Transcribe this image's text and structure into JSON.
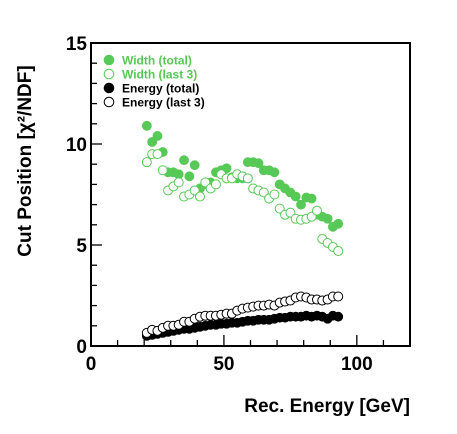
{
  "chart_data": {
    "type": "scatter",
    "xlabel": "Rec. Energy [GeV]",
    "ylabel": "Cut Position [χ²/NDF]",
    "xlim": [
      0,
      120
    ],
    "ylim": [
      0,
      15
    ],
    "xticks": [
      0,
      50,
      100
    ],
    "yticks": [
      0,
      5,
      10,
      15
    ],
    "grid": false,
    "legend_position": "top-left",
    "series": [
      {
        "name": "Width (total)",
        "color": "#57c957",
        "marker": "filled-circle",
        "points": [
          [
            21,
            10.9
          ],
          [
            23,
            10.1
          ],
          [
            25,
            10.4
          ],
          [
            27,
            9.6
          ],
          [
            29,
            8.6
          ],
          [
            31,
            8.6
          ],
          [
            33,
            8.5
          ],
          [
            35,
            9.2
          ],
          [
            37,
            8.4
          ],
          [
            39,
            8.95
          ],
          [
            41,
            7.8
          ],
          [
            43,
            8.0
          ],
          [
            45,
            8.1
          ],
          [
            47,
            8.6
          ],
          [
            49,
            8.7
          ],
          [
            51,
            8.8
          ],
          [
            53,
            8.35
          ],
          [
            55,
            8.3
          ],
          [
            57,
            8.3
          ],
          [
            59,
            9.1
          ],
          [
            61,
            9.1
          ],
          [
            63,
            9.05
          ],
          [
            65,
            8.7
          ],
          [
            67,
            8.7
          ],
          [
            69,
            8.6
          ],
          [
            71,
            8.0
          ],
          [
            73,
            7.8
          ],
          [
            75,
            7.6
          ],
          [
            77,
            7.4
          ],
          [
            79,
            7.0
          ],
          [
            81,
            7.35
          ],
          [
            83,
            7.3
          ],
          [
            85,
            6.5
          ],
          [
            87,
            6.4
          ],
          [
            89,
            6.3
          ],
          [
            91,
            5.9
          ],
          [
            93,
            6.05
          ]
        ]
      },
      {
        "name": "Width (last 3)",
        "color": "#57c957",
        "marker": "open-circle",
        "points": [
          [
            21,
            9.1
          ],
          [
            23,
            9.5
          ],
          [
            25,
            9.5
          ],
          [
            27,
            8.7
          ],
          [
            29,
            7.7
          ],
          [
            31,
            7.9
          ],
          [
            33,
            8.1
          ],
          [
            35,
            7.4
          ],
          [
            37,
            7.5
          ],
          [
            39,
            7.7
          ],
          [
            41,
            7.4
          ],
          [
            43,
            8.1
          ],
          [
            45,
            7.8
          ],
          [
            47,
            8.0
          ],
          [
            49,
            8.5
          ],
          [
            51,
            8.3
          ],
          [
            53,
            8.3
          ],
          [
            55,
            8.5
          ],
          [
            57,
            8.4
          ],
          [
            59,
            8.3
          ],
          [
            61,
            7.8
          ],
          [
            63,
            7.7
          ],
          [
            65,
            7.6
          ],
          [
            67,
            7.3
          ],
          [
            69,
            7.5
          ],
          [
            71,
            6.8
          ],
          [
            73,
            6.5
          ],
          [
            75,
            6.6
          ],
          [
            77,
            6.3
          ],
          [
            79,
            6.25
          ],
          [
            81,
            6.3
          ],
          [
            83,
            6.4
          ],
          [
            85,
            6.7
          ],
          [
            87,
            5.3
          ],
          [
            89,
            5.1
          ],
          [
            91,
            4.9
          ],
          [
            93,
            4.7
          ]
        ]
      },
      {
        "name": "Energy (total)",
        "color": "#000000",
        "marker": "filled-circle",
        "points": [
          [
            21,
            0.5
          ],
          [
            23,
            0.55
          ],
          [
            25,
            0.6
          ],
          [
            27,
            0.65
          ],
          [
            29,
            0.7
          ],
          [
            31,
            0.75
          ],
          [
            33,
            0.8
          ],
          [
            35,
            0.85
          ],
          [
            37,
            0.85
          ],
          [
            39,
            0.9
          ],
          [
            41,
            0.95
          ],
          [
            43,
            1.0
          ],
          [
            45,
            1.05
          ],
          [
            47,
            1.05
          ],
          [
            49,
            1.1
          ],
          [
            51,
            1.1
          ],
          [
            53,
            1.15
          ],
          [
            55,
            1.15
          ],
          [
            57,
            1.2
          ],
          [
            59,
            1.25
          ],
          [
            61,
            1.25
          ],
          [
            63,
            1.3
          ],
          [
            65,
            1.3
          ],
          [
            67,
            1.3
          ],
          [
            69,
            1.35
          ],
          [
            71,
            1.4
          ],
          [
            73,
            1.4
          ],
          [
            75,
            1.45
          ],
          [
            77,
            1.45
          ],
          [
            79,
            1.45
          ],
          [
            81,
            1.5
          ],
          [
            83,
            1.45
          ],
          [
            85,
            1.5
          ],
          [
            87,
            1.45
          ],
          [
            89,
            1.35
          ],
          [
            91,
            1.5
          ],
          [
            93,
            1.45
          ]
        ]
      },
      {
        "name": "Energy (last 3)",
        "color": "#000000",
        "marker": "open-circle",
        "points": [
          [
            21,
            0.65
          ],
          [
            23,
            0.8
          ],
          [
            25,
            0.75
          ],
          [
            27,
            0.9
          ],
          [
            29,
            1.0
          ],
          [
            31,
            1.0
          ],
          [
            33,
            1.05
          ],
          [
            35,
            1.2
          ],
          [
            37,
            1.2
          ],
          [
            39,
            1.35
          ],
          [
            41,
            1.45
          ],
          [
            43,
            1.5
          ],
          [
            45,
            1.5
          ],
          [
            47,
            1.5
          ],
          [
            49,
            1.55
          ],
          [
            51,
            1.6
          ],
          [
            53,
            1.6
          ],
          [
            55,
            1.75
          ],
          [
            57,
            1.85
          ],
          [
            59,
            1.9
          ],
          [
            61,
            1.95
          ],
          [
            63,
            2.0
          ],
          [
            65,
            2.0
          ],
          [
            67,
            2.05
          ],
          [
            69,
            2.0
          ],
          [
            71,
            2.15
          ],
          [
            73,
            2.2
          ],
          [
            75,
            2.25
          ],
          [
            77,
            2.4
          ],
          [
            79,
            2.45
          ],
          [
            81,
            2.4
          ],
          [
            83,
            2.3
          ],
          [
            85,
            2.3
          ],
          [
            87,
            2.25
          ],
          [
            89,
            2.3
          ],
          [
            91,
            2.45
          ],
          [
            93,
            2.45
          ]
        ]
      }
    ]
  }
}
